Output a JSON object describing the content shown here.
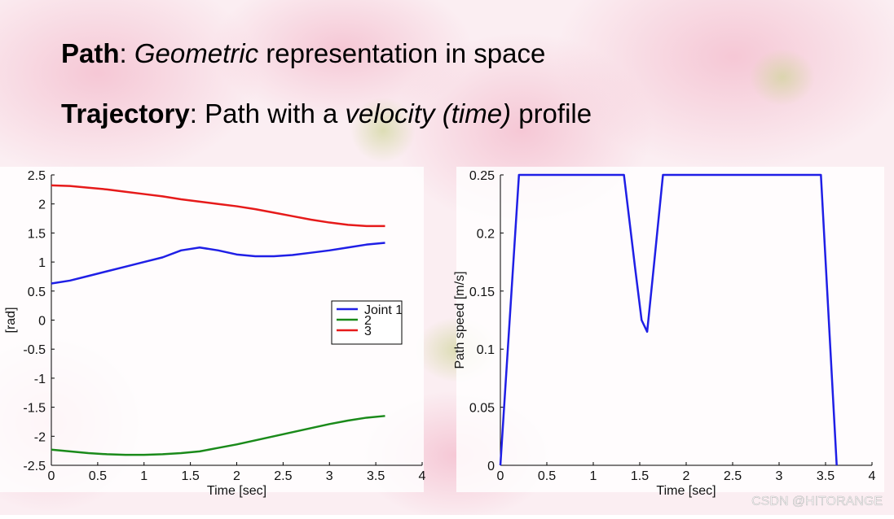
{
  "slide": {
    "lines": [
      [
        {
          "text": "Path",
          "style": "bold"
        },
        {
          "text": ": ",
          "style": "normal"
        },
        {
          "text": "Geometric",
          "style": "italic"
        },
        {
          "text": " representation in space",
          "style": "normal"
        }
      ],
      [
        {
          "text": "Trajectory",
          "style": "bold"
        },
        {
          "text": ": Path with a ",
          "style": "normal"
        },
        {
          "text": "velocity (time)",
          "style": "italic"
        },
        {
          "text": " profile",
          "style": "normal"
        }
      ]
    ]
  },
  "watermark": "CSDN @HITORANGE",
  "chart_data": [
    {
      "type": "line",
      "xlabel": "Time [sec]",
      "ylabel": "[rad]",
      "x": [
        0,
        0.2,
        0.4,
        0.6,
        0.8,
        1.0,
        1.2,
        1.4,
        1.6,
        1.8,
        2.0,
        2.2,
        2.4,
        2.6,
        2.8,
        3.0,
        3.2,
        3.4,
        3.6
      ],
      "series": [
        {
          "name": "Joint 1",
          "color": "#1f1fe6",
          "values": [
            0.63,
            0.68,
            0.76,
            0.84,
            0.92,
            1.0,
            1.08,
            1.2,
            1.25,
            1.2,
            1.13,
            1.1,
            1.1,
            1.12,
            1.16,
            1.2,
            1.25,
            1.3,
            1.33
          ]
        },
        {
          "name": "2",
          "color": "#1a8a1a",
          "values": [
            -2.23,
            -2.26,
            -2.29,
            -2.31,
            -2.32,
            -2.32,
            -2.31,
            -2.29,
            -2.26,
            -2.2,
            -2.14,
            -2.07,
            -2.0,
            -1.93,
            -1.86,
            -1.79,
            -1.73,
            -1.68,
            -1.65
          ]
        },
        {
          "name": "3",
          "color": "#e61a1a",
          "values": [
            2.32,
            2.31,
            2.28,
            2.25,
            2.21,
            2.17,
            2.13,
            2.08,
            2.04,
            2.0,
            1.96,
            1.91,
            1.85,
            1.79,
            1.73,
            1.68,
            1.64,
            1.62,
            1.62
          ]
        }
      ],
      "xlim": [
        0,
        4
      ],
      "xticks": [
        0,
        0.5,
        1,
        1.5,
        2,
        2.5,
        3,
        3.5,
        4
      ],
      "ylim": [
        -2.5,
        2.5
      ],
      "yticks": [
        -2.5,
        -2,
        -1.5,
        -1,
        -0.5,
        0,
        0.5,
        1,
        1.5,
        2,
        2.5
      ],
      "legend": "right"
    },
    {
      "type": "line",
      "xlabel": "Time [sec]",
      "ylabel": "Path speed [m/s]",
      "x": [
        0,
        0.2,
        1.33,
        1.45,
        1.52,
        1.58,
        1.65,
        1.75,
        3.45,
        3.62
      ],
      "series": [
        {
          "color": "#1f1fe6",
          "values": [
            0,
            0.25,
            0.25,
            0.17,
            0.125,
            0.115,
            0.17,
            0.25,
            0.25,
            0
          ]
        }
      ],
      "xlim": [
        0,
        4
      ],
      "xticks": [
        0,
        0.5,
        1,
        1.5,
        2,
        2.5,
        3,
        3.5,
        4
      ],
      "ylim": [
        0,
        0.25
      ],
      "yticks": [
        0,
        0.05,
        0.1,
        0.15,
        0.2,
        0.25
      ]
    }
  ]
}
